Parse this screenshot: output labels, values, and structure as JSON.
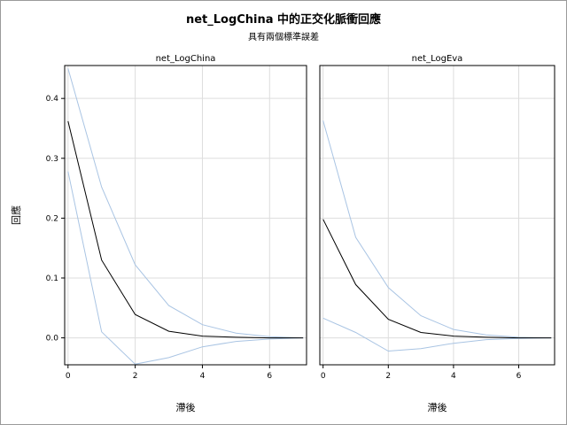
{
  "title": "net_LogChina 中的正交化脈衝回應",
  "subtitle": "具有兩個標準誤差",
  "ylabel": "回應",
  "colors": {
    "response": "#000000",
    "band": "#a9c4e3",
    "grid": "#dddddd",
    "frame": "#000000"
  },
  "chart_data": [
    {
      "type": "line",
      "title": "net_LogChina",
      "xlabel": "滯後",
      "ylabel": "回應",
      "xlim": [
        -0.1,
        7.1
      ],
      "ylim": [
        -0.045,
        0.455
      ],
      "xticks": [
        0,
        2,
        4,
        6
      ],
      "yticks": [
        0.0,
        0.1,
        0.2,
        0.3,
        0.4
      ],
      "x": [
        0,
        1,
        2,
        3,
        4,
        5,
        6,
        7
      ],
      "series": [
        {
          "role": "response",
          "values": [
            0.362,
            0.13,
            0.039,
            0.011,
            0.003,
            0.001,
            0.0,
            0.0
          ]
        },
        {
          "role": "upper",
          "values": [
            0.45,
            0.252,
            0.122,
            0.054,
            0.022,
            0.008,
            0.002,
            0.0
          ]
        },
        {
          "role": "lower",
          "values": [
            0.278,
            0.01,
            -0.044,
            -0.033,
            -0.015,
            -0.006,
            -0.002,
            0.0
          ]
        }
      ]
    },
    {
      "type": "line",
      "title": "net_LogEva",
      "xlabel": "滯後",
      "ylabel": "",
      "xlim": [
        -0.1,
        7.1
      ],
      "ylim": [
        -0.045,
        0.455
      ],
      "xticks": [
        0,
        2,
        4,
        6
      ],
      "yticks": [
        0.0,
        0.1,
        0.2,
        0.3,
        0.4
      ],
      "x": [
        0,
        1,
        2,
        3,
        4,
        5,
        6,
        7
      ],
      "series": [
        {
          "role": "response",
          "values": [
            0.198,
            0.089,
            0.031,
            0.009,
            0.003,
            0.001,
            0.0,
            0.0
          ]
        },
        {
          "role": "upper",
          "values": [
            0.363,
            0.168,
            0.084,
            0.037,
            0.014,
            0.005,
            0.001,
            0.0
          ]
        },
        {
          "role": "lower",
          "values": [
            0.033,
            0.009,
            -0.022,
            -0.018,
            -0.009,
            -0.003,
            -0.001,
            0.0
          ]
        }
      ]
    }
  ]
}
